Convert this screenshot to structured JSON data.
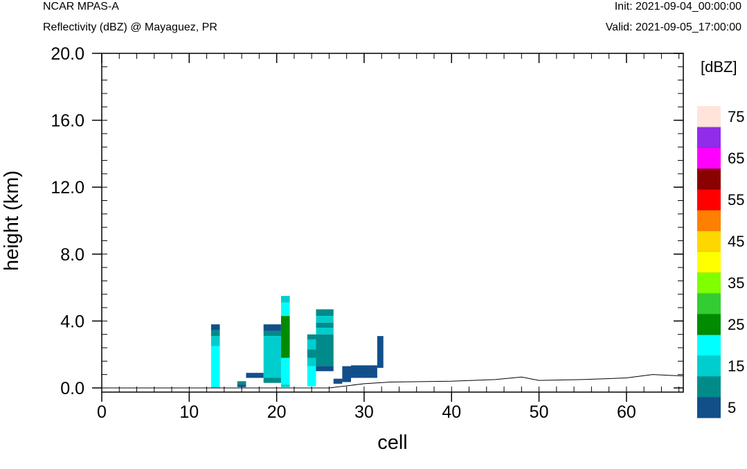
{
  "header": {
    "model": "NCAR MPAS-A",
    "subtitle": "Reflectivity (dBZ) @ Mayaguez, PR",
    "init": "Init: 2021-09-04_00:00:00",
    "valid": "Valid: 2021-09-05_17:00:00"
  },
  "chart_data": {
    "type": "heatmap",
    "xlabel": "cell",
    "ylabel": "height (km)",
    "xlim": [
      0,
      66.5
    ],
    "ylim": [
      -0.25,
      20.0
    ],
    "xticks": [
      "0",
      "10",
      "20",
      "30",
      "40",
      "50",
      "60"
    ],
    "xtick_values": [
      0,
      10,
      20,
      30,
      40,
      50,
      60
    ],
    "yticks": [
      "0.0",
      "4.0",
      "8.0",
      "12.0",
      "16.0",
      "20.0"
    ],
    "ytick_values": [
      0,
      4,
      8,
      12,
      16,
      20
    ],
    "colorbar": {
      "title": "[dBZ]",
      "labels": [
        "5",
        "15",
        "25",
        "35",
        "45",
        "55",
        "65",
        "75"
      ],
      "levels": [
        5,
        10,
        15,
        20,
        25,
        30,
        35,
        40,
        45,
        50,
        55,
        60,
        65,
        70,
        75
      ],
      "colors": [
        "#124f8a",
        "#008b8a",
        "#00cdcd",
        "#00ffff",
        "#008b00",
        "#32cd32",
        "#7fff00",
        "#ffff00",
        "#ffd700",
        "#ff7f00",
        "#ff0000",
        "#8b0000",
        "#ff00ff",
        "#912ce8",
        "#ffe4da"
      ]
    },
    "terrain": [
      [
        0,
        0
      ],
      [
        26,
        0
      ],
      [
        30,
        0.25
      ],
      [
        33,
        0.35
      ],
      [
        40,
        0.4
      ],
      [
        45,
        0.5
      ],
      [
        48,
        0.65
      ],
      [
        50,
        0.45
      ],
      [
        55,
        0.5
      ],
      [
        60,
        0.6
      ],
      [
        63,
        0.8
      ],
      [
        65,
        0.75
      ],
      [
        66.5,
        0.72
      ]
    ],
    "cells": [
      {
        "x": [
          12.5,
          13.5
        ],
        "y": [
          3.45,
          3.8
        ],
        "dbz": 5
      },
      {
        "x": [
          12.5,
          13.5
        ],
        "y": [
          3.1,
          3.45
        ],
        "dbz": 10
      },
      {
        "x": [
          12.5,
          13.5
        ],
        "y": [
          2.5,
          3.1
        ],
        "dbz": 15
      },
      {
        "x": [
          12.5,
          13.5
        ],
        "y": [
          0.0,
          2.5
        ],
        "dbz": 20
      },
      {
        "x": [
          15.5,
          16.5
        ],
        "y": [
          0.2,
          0.4
        ],
        "dbz": 10
      },
      {
        "x": [
          15.5,
          16.5
        ],
        "y": [
          0.05,
          0.2
        ],
        "dbz": 5
      },
      {
        "x": [
          16.5,
          18.5
        ],
        "y": [
          0.6,
          0.9
        ],
        "dbz": 5
      },
      {
        "x": [
          18.5,
          20.5
        ],
        "y": [
          3.4,
          3.8
        ],
        "dbz": 5
      },
      {
        "x": [
          18.5,
          20.5
        ],
        "y": [
          3.1,
          3.4
        ],
        "dbz": 10
      },
      {
        "x": [
          18.5,
          20.5
        ],
        "y": [
          0.6,
          3.1
        ],
        "dbz": 15
      },
      {
        "x": [
          18.5,
          20.5
        ],
        "y": [
          0.3,
          0.6
        ],
        "dbz": 10
      },
      {
        "x": [
          20.5,
          21.5
        ],
        "y": [
          5.1,
          5.5
        ],
        "dbz": 15
      },
      {
        "x": [
          20.5,
          21.5
        ],
        "y": [
          4.3,
          5.1
        ],
        "dbz": 20
      },
      {
        "x": [
          20.5,
          21.5
        ],
        "y": [
          1.8,
          4.3
        ],
        "dbz": 25
      },
      {
        "x": [
          20.5,
          21.5
        ],
        "y": [
          0.2,
          1.8
        ],
        "dbz": 20
      },
      {
        "x": [
          20.5,
          21.5
        ],
        "y": [
          0.05,
          0.2
        ],
        "dbz": 15
      },
      {
        "x": [
          23.5,
          24.5
        ],
        "y": [
          2.9,
          3.2
        ],
        "dbz": 10
      },
      {
        "x": [
          23.5,
          24.5
        ],
        "y": [
          2.3,
          2.9
        ],
        "dbz": 15
      },
      {
        "x": [
          23.5,
          24.5
        ],
        "y": [
          1.8,
          2.3
        ],
        "dbz": 10
      },
      {
        "x": [
          23.5,
          24.5
        ],
        "y": [
          1.3,
          1.8
        ],
        "dbz": 15
      },
      {
        "x": [
          23.5,
          24.5
        ],
        "y": [
          0.1,
          1.3
        ],
        "dbz": 20
      },
      {
        "x": [
          24.5,
          26.5
        ],
        "y": [
          4.3,
          4.7
        ],
        "dbz": 10
      },
      {
        "x": [
          24.5,
          26.5
        ],
        "y": [
          3.9,
          4.3
        ],
        "dbz": 15
      },
      {
        "x": [
          24.5,
          26.5
        ],
        "y": [
          3.6,
          3.9
        ],
        "dbz": 10
      },
      {
        "x": [
          24.5,
          26.5
        ],
        "y": [
          3.2,
          3.6
        ],
        "dbz": 15
      },
      {
        "x": [
          24.5,
          26.5
        ],
        "y": [
          1.3,
          3.2
        ],
        "dbz": 10
      },
      {
        "x": [
          24.5,
          26.5
        ],
        "y": [
          1.0,
          1.3
        ],
        "dbz": 5
      },
      {
        "x": [
          26.5,
          27.5
        ],
        "y": [
          0.25,
          0.55
        ],
        "dbz": 5
      },
      {
        "x": [
          27.5,
          28.5
        ],
        "y": [
          0.35,
          1.3
        ],
        "dbz": 5
      },
      {
        "x": [
          28.5,
          31.5
        ],
        "y": [
          0.6,
          1.35
        ],
        "dbz": 5
      },
      {
        "x": [
          31.5,
          32.2
        ],
        "y": [
          1.2,
          3.1
        ],
        "dbz": 5
      }
    ]
  }
}
